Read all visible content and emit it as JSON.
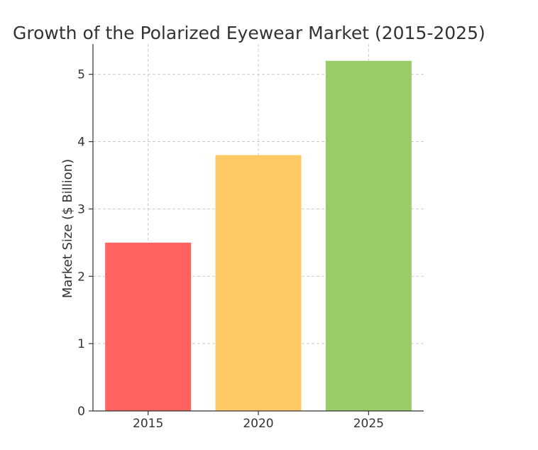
{
  "chart_data": {
    "type": "bar",
    "title": "Growth of the Polarized Eyewear Market (2015-2025)",
    "xlabel": "",
    "ylabel": "Market Size ($ Billion)",
    "categories": [
      "2015",
      "2020",
      "2025"
    ],
    "values": [
      2.5,
      3.8,
      5.2
    ],
    "colors": [
      "#ff6361",
      "#ffc966",
      "#99cc66"
    ],
    "ylim": [
      0,
      5.45
    ],
    "yticks": [
      0,
      1,
      2,
      3,
      4,
      5
    ],
    "grid": true,
    "legend": "none"
  }
}
